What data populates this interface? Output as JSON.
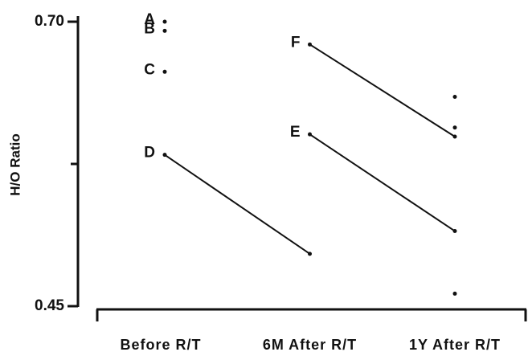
{
  "chart_data": {
    "type": "line",
    "ylabel": "H/O Ratio",
    "categories": [
      "Before R/T",
      "6M After R/T",
      "1Y After R/T"
    ],
    "series": [
      {
        "name": "A",
        "color": "#111111",
        "values": [
          0.7,
          null,
          0.607
        ]
      },
      {
        "name": "B",
        "color": "#111111",
        "values": [
          0.692,
          null,
          0.461
        ]
      },
      {
        "name": "C",
        "color": "#111111",
        "values": [
          0.656,
          null,
          0.634
        ]
      },
      {
        "name": "D",
        "color": "#111111",
        "values": [
          0.583,
          0.496,
          null
        ]
      },
      {
        "name": "E",
        "color": "#111111",
        "values": [
          null,
          0.601,
          0.516
        ]
      },
      {
        "name": "F",
        "color": "#111111",
        "values": [
          null,
          0.68,
          0.599
        ]
      }
    ],
    "ylim": [
      0.45,
      0.7
    ],
    "yticks": [
      {
        "value": 0.45,
        "label": "0.45"
      },
      {
        "value": 0.7,
        "label": "0.70"
      }
    ],
    "yminor_ticks": [
      0.575
    ]
  }
}
